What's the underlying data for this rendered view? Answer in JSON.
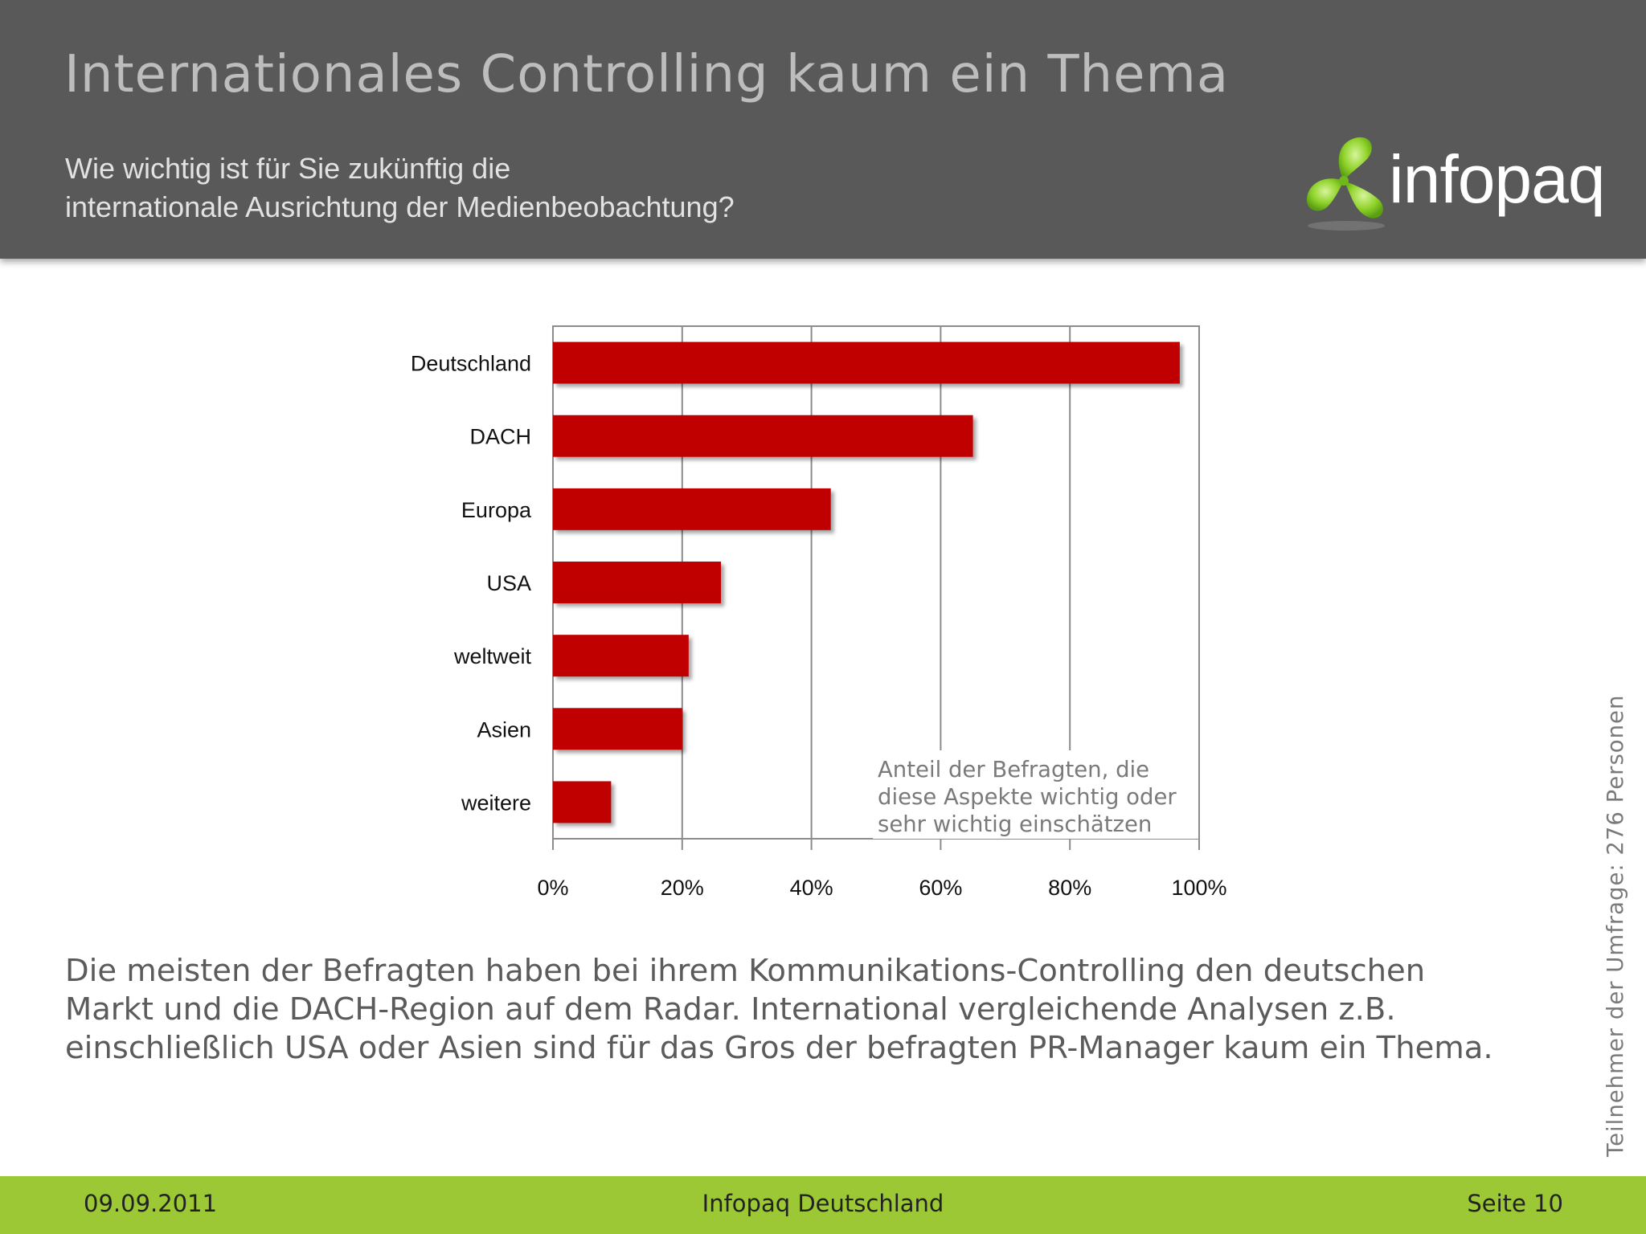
{
  "header": {
    "title": "Internationales Controlling kaum ein Thema",
    "subtitle_lines": [
      "Wie wichtig ist für Sie zukünftig die",
      "internationale Ausrichtung der Medienbeobachtung?"
    ],
    "logo_text": "infopaq",
    "colors": {
      "background": "#595959",
      "logo_green": "#7fc41c"
    }
  },
  "chart_data": {
    "type": "bar",
    "orientation": "horizontal",
    "categories": [
      "Deutschland",
      "DACH",
      "Europa",
      "USA",
      "weltweit",
      "Asien",
      "weitere"
    ],
    "values": [
      97,
      65,
      43,
      26,
      21,
      20,
      9
    ],
    "unit": "%",
    "xlim": [
      0,
      100
    ],
    "x_ticks": [
      "0%",
      "20%",
      "40%",
      "60%",
      "80%",
      "100%"
    ],
    "grid": true,
    "bar_color": "#c00000",
    "annotation_lines": [
      "Anteil der Befragten, die",
      "diese Aspekte wichtig oder",
      "sehr wichtig einschätzen"
    ]
  },
  "summary_lines": [
    "Die meisten der Befragten haben bei ihrem Kommunikations-Controlling den deutschen",
    "Markt und die DACH-Region auf dem Radar. International vergleichende Analysen z.B.",
    "einschließlich USA oder Asien sind für das Gros der befragten PR-Manager kaum ein Thema."
  ],
  "side_note": "Teilnehmer der Umfrage: 276 Personen",
  "footer": {
    "date": "09.09.2011",
    "company": "Infopaq Deutschland",
    "page": "Seite 10",
    "color": "#9bc834"
  }
}
